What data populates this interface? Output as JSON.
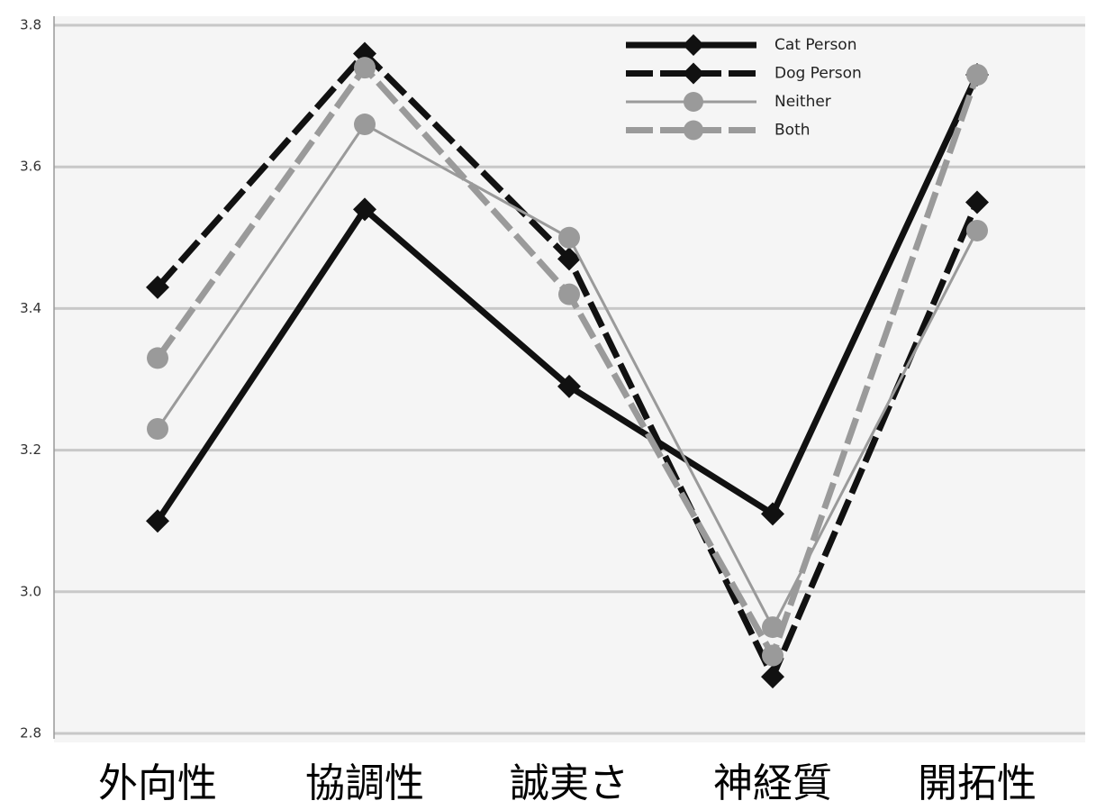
{
  "chart_data": {
    "type": "line",
    "categories": [
      "外向性",
      "協調性",
      "誠実さ",
      "神経質",
      "開拓性"
    ],
    "series": [
      {
        "name": "Cat Person",
        "color": "#111111",
        "linestyle": "solid",
        "marker": "diamond",
        "values": [
          3.1,
          3.54,
          3.29,
          3.11,
          3.73
        ]
      },
      {
        "name": "Dog Person",
        "color": "#111111",
        "linestyle": "dashed",
        "marker": "diamond",
        "values": [
          3.43,
          3.76,
          3.47,
          2.88,
          3.55
        ]
      },
      {
        "name": "Neither",
        "color": "#9a9a9a",
        "linestyle": "solid",
        "marker": "circle",
        "values": [
          3.23,
          3.66,
          3.5,
          2.95,
          3.51
        ]
      },
      {
        "name": "Both",
        "color": "#9a9a9a",
        "linestyle": "dashed",
        "marker": "circle",
        "values": [
          3.33,
          3.74,
          3.42,
          2.91,
          3.73
        ]
      }
    ],
    "ylim": [
      2.8,
      3.8
    ],
    "yticks": [
      2.8,
      {
        "value": 3,
        "label": "3.0"
      },
      3.2,
      3.4,
      3.6,
      3.8
    ],
    "grid": true,
    "legend": "upper right"
  }
}
